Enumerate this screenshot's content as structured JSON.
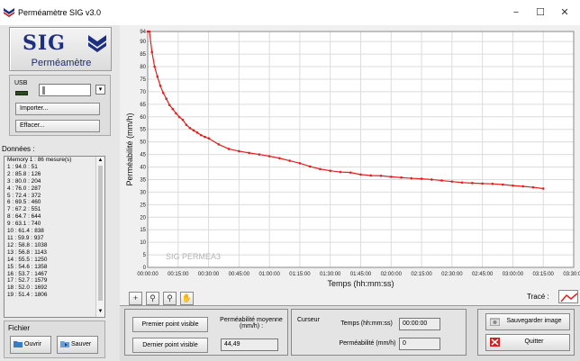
{
  "window": {
    "title": "Perméamètre SIG v3.0",
    "minimize": "−",
    "maximize": "☐",
    "close": "✕"
  },
  "logo": {
    "word": "SIG",
    "subtitle": "Perméamètre"
  },
  "usb": {
    "label": "USB",
    "dropdown_arrow": "▾"
  },
  "buttons": {
    "import": "Importer...",
    "clear": "Effacer..."
  },
  "data_panel": {
    "label": "Données :",
    "lines": [
      "Memory 1 : 86 mesure(s)",
      "1 : 94.0 : 51",
      "2 : 85.8 : 126",
      "3 : 80.0 : 204",
      "4 : 76.0 : 287",
      "5 : 72.4 : 372",
      "6 : 69.5 : 460",
      "7 : 67.2 : 551",
      "8 : 64.7 : 644",
      "9 : 63.1 : 740",
      "10 : 61.4 : 838",
      "11 : 59.9 : 937",
      "12 : 58.8 : 1038",
      "13 : 56.8 : 1143",
      "14 : 55.5 : 1250",
      "15 : 54.6 : 1358",
      "16 : 53.7 : 1467",
      "17 : 52.7 : 1579",
      "18 : 52.0 : 1692",
      "19 : 51.4 : 1806"
    ],
    "scroll_up": "▲",
    "scroll_down": "▼"
  },
  "fichier": {
    "label": "Fichier",
    "open": "Ouvrir",
    "save": "Sauver"
  },
  "chart_data": {
    "type": "line",
    "xlabel": "Temps (hh:mm:ss)",
    "ylabel": "Perméabilité (mm/h)",
    "watermark": "SIG PERMEA3",
    "ylim": [
      0,
      94
    ],
    "xlim": [
      "00:00:00",
      "03:30:00"
    ],
    "x_ticks": [
      "00:00:00",
      "00:15:00",
      "00:30:00",
      "00:45:00",
      "01:00:00",
      "01:15:00",
      "01:30:00",
      "01:45:00",
      "02:00:00",
      "02:15:00",
      "02:30:00",
      "02:45:00",
      "03:00:00",
      "03:15:00",
      "03:30:00"
    ],
    "y_ticks": [
      0,
      5,
      10,
      15,
      20,
      25,
      30,
      35,
      40,
      45,
      50,
      55,
      60,
      65,
      70,
      75,
      80,
      85,
      90,
      94
    ],
    "grid": true,
    "line_color": "#e02020",
    "series": [
      {
        "x": [
          "00:00:00",
          "00:00:51",
          "00:02:06",
          "00:03:24",
          "00:04:47",
          "00:06:12",
          "00:07:40",
          "00:09:11",
          "00:10:44",
          "00:12:20",
          "00:13:58",
          "00:15:37",
          "00:17:18",
          "00:19:03",
          "00:20:50",
          "00:22:38",
          "00:24:27",
          "00:26:19",
          "00:28:12",
          "00:30:06",
          "00:35:00",
          "00:40:00",
          "00:45:00",
          "00:50:00",
          "00:55:00",
          "01:00:00",
          "01:05:00",
          "01:10:00",
          "01:15:00",
          "01:20:00",
          "01:25:00",
          "01:30:00",
          "01:35:00",
          "01:40:00",
          "01:45:00",
          "01:50:00",
          "01:55:00",
          "02:00:00",
          "02:05:00",
          "02:10:00",
          "02:15:00",
          "02:20:00",
          "02:25:00",
          "02:30:00",
          "02:35:00",
          "02:40:00",
          "02:45:00",
          "02:50:00",
          "02:55:00",
          "03:00:00",
          "03:05:00",
          "03:10:00",
          "03:15:00"
        ],
        "y": [
          94.0,
          94.0,
          85.8,
          80.0,
          76.0,
          72.4,
          69.5,
          67.2,
          64.7,
          63.1,
          61.4,
          59.9,
          58.8,
          56.8,
          55.5,
          54.6,
          53.7,
          52.7,
          52.0,
          51.4,
          49.0,
          47.2,
          46.3,
          45.6,
          45.0,
          44.3,
          43.5,
          42.5,
          41.5,
          40.2,
          39.2,
          38.5,
          38.0,
          37.8,
          37.0,
          36.6,
          36.5,
          36.1,
          35.8,
          35.5,
          35.3,
          35.0,
          34.6,
          34.2,
          33.8,
          33.6,
          33.4,
          33.3,
          33.0,
          32.6,
          32.3,
          31.9,
          31.4
        ]
      }
    ]
  },
  "toolbar": {
    "add": "+",
    "zoom": "⚲",
    "zoom_out": "⚲",
    "pan": "✋",
    "trace_label": "Tracé :"
  },
  "bottom": {
    "first_visible": "Premier point visible",
    "last_visible": "Dernier point visible",
    "avg_label": "Perméabilité moyenne (mm/h) :",
    "avg_value": "44,49",
    "cursor_label": "Curseur",
    "time_label": "Temps (hh:mm:ss)",
    "time_value": "00:00:00",
    "perm_label": "Perméabilité (mm/h)",
    "perm_value": "0",
    "save_image": "Sauvegarder image",
    "quit": "Quitter"
  }
}
